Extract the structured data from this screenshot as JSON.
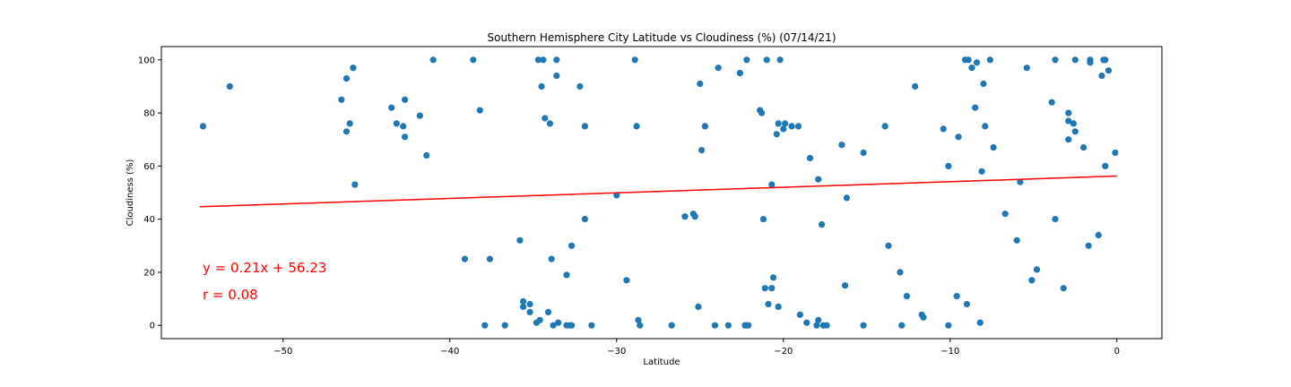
{
  "chart_data": {
    "type": "scatter",
    "title": "Southern Hemisphere City Latitude vs Cloudiness (%) (07/14/21)",
    "xlabel": "Latitude",
    "ylabel": "Cloudiness (%)",
    "xlim": [
      -57.3,
      2.7
    ],
    "ylim": [
      -5,
      105
    ],
    "xticks": [
      -50,
      -40,
      -30,
      -20,
      -10,
      0
    ],
    "xtick_labels": [
      "−50",
      "−40",
      "−30",
      "−20",
      "−10",
      "0"
    ],
    "yticks": [
      0,
      20,
      40,
      60,
      80,
      100
    ],
    "ytick_labels": [
      "0",
      "20",
      "40",
      "60",
      "80",
      "100"
    ],
    "grid": false,
    "point_color": "#1f77b4",
    "line_color": "#ff0000",
    "regression": {
      "slope": 0.21,
      "intercept": 56.23,
      "x_range": [
        -55,
        0
      ]
    },
    "annotations": [
      "y = 0.21x + 56.23",
      "r = 0.08"
    ],
    "points": [
      [
        -54.8,
        75
      ],
      [
        -53.2,
        90
      ],
      [
        -46.5,
        85
      ],
      [
        -46.2,
        93
      ],
      [
        -46.2,
        73
      ],
      [
        -46.0,
        76
      ],
      [
        -45.8,
        97
      ],
      [
        -45.7,
        53
      ],
      [
        -43.5,
        82
      ],
      [
        -43.2,
        76
      ],
      [
        -42.8,
        75
      ],
      [
        -42.7,
        85
      ],
      [
        -42.7,
        71
      ],
      [
        -41.8,
        79
      ],
      [
        -41.4,
        64
      ],
      [
        -41.0,
        100
      ],
      [
        -38.6,
        100
      ],
      [
        -38.2,
        81
      ],
      [
        -39.1,
        25
      ],
      [
        -37.6,
        25
      ],
      [
        -37.9,
        0
      ],
      [
        -36.7,
        0
      ],
      [
        -35.8,
        32
      ],
      [
        -35.6,
        7
      ],
      [
        -35.6,
        9
      ],
      [
        -35.2,
        8
      ],
      [
        -35.2,
        5
      ],
      [
        -34.8,
        1
      ],
      [
        -34.6,
        2
      ],
      [
        -34.7,
        100
      ],
      [
        -34.4,
        100
      ],
      [
        -34.5,
        90
      ],
      [
        -34.3,
        78
      ],
      [
        -34.1,
        5
      ],
      [
        -34.0,
        76
      ],
      [
        -33.9,
        25
      ],
      [
        -33.8,
        0
      ],
      [
        -33.6,
        100
      ],
      [
        -33.6,
        94
      ],
      [
        -33.5,
        1
      ],
      [
        -33.0,
        0
      ],
      [
        -33.0,
        19
      ],
      [
        -32.8,
        0
      ],
      [
        -32.7,
        0
      ],
      [
        -32.7,
        30
      ],
      [
        -32.2,
        90
      ],
      [
        -31.9,
        75
      ],
      [
        -31.9,
        40
      ],
      [
        -31.5,
        0
      ],
      [
        -30.0,
        49
      ],
      [
        -29.4,
        17
      ],
      [
        -28.9,
        100
      ],
      [
        -28.8,
        75
      ],
      [
        -28.7,
        2
      ],
      [
        -28.6,
        0
      ],
      [
        -26.7,
        0
      ],
      [
        -25.9,
        41
      ],
      [
        -25.4,
        42
      ],
      [
        -25.3,
        41
      ],
      [
        -25.1,
        7
      ],
      [
        -25.0,
        91
      ],
      [
        -24.9,
        66
      ],
      [
        -24.7,
        75
      ],
      [
        -23.9,
        97
      ],
      [
        -24.1,
        0
      ],
      [
        -23.3,
        0
      ],
      [
        -22.6,
        95
      ],
      [
        -22.3,
        0
      ],
      [
        -22.2,
        100
      ],
      [
        -22.2,
        0
      ],
      [
        -22.1,
        0
      ],
      [
        -21.4,
        81
      ],
      [
        -21.3,
        80
      ],
      [
        -21.2,
        40
      ],
      [
        -21.1,
        14
      ],
      [
        -21.0,
        100
      ],
      [
        -20.9,
        8
      ],
      [
        -20.7,
        14
      ],
      [
        -20.7,
        53
      ],
      [
        -20.6,
        18
      ],
      [
        -20.4,
        72
      ],
      [
        -20.3,
        76
      ],
      [
        -20.3,
        7
      ],
      [
        -20.2,
        100
      ],
      [
        -20.0,
        74
      ],
      [
        -19.9,
        76
      ],
      [
        -19.5,
        75
      ],
      [
        -19.1,
        75
      ],
      [
        -19.0,
        4
      ],
      [
        -18.6,
        1
      ],
      [
        -18.4,
        63
      ],
      [
        -18.0,
        0
      ],
      [
        -17.9,
        55
      ],
      [
        -17.9,
        2
      ],
      [
        -17.7,
        38
      ],
      [
        -17.6,
        0
      ],
      [
        -17.4,
        0
      ],
      [
        -16.5,
        68
      ],
      [
        -16.2,
        48
      ],
      [
        -16.3,
        15
      ],
      [
        -15.2,
        65
      ],
      [
        -15.2,
        0
      ],
      [
        -13.9,
        75
      ],
      [
        -13.7,
        30
      ],
      [
        -13.0,
        20
      ],
      [
        -12.9,
        0
      ],
      [
        -12.6,
        11
      ],
      [
        -12.1,
        90
      ],
      [
        -11.7,
        4
      ],
      [
        -11.6,
        3
      ],
      [
        -10.4,
        74
      ],
      [
        -10.1,
        60
      ],
      [
        -10.1,
        0
      ],
      [
        -9.6,
        11
      ],
      [
        -9.5,
        71
      ],
      [
        -9.1,
        100
      ],
      [
        -8.9,
        100
      ],
      [
        -9.0,
        8
      ],
      [
        -8.7,
        97
      ],
      [
        -8.5,
        82
      ],
      [
        -8.4,
        99
      ],
      [
        -8.2,
        1
      ],
      [
        -8.0,
        91
      ],
      [
        -7.9,
        75
      ],
      [
        -7.6,
        100
      ],
      [
        -7.4,
        67
      ],
      [
        -8.1,
        58
      ],
      [
        -6.7,
        42
      ],
      [
        -6.0,
        32
      ],
      [
        -5.8,
        54
      ],
      [
        -5.4,
        97
      ],
      [
        -5.1,
        17
      ],
      [
        -4.8,
        21
      ],
      [
        -3.9,
        84
      ],
      [
        -3.7,
        100
      ],
      [
        -3.7,
        40
      ],
      [
        -3.2,
        14
      ],
      [
        -2.9,
        80
      ],
      [
        -2.9,
        77
      ],
      [
        -2.9,
        70
      ],
      [
        -2.6,
        76
      ],
      [
        -2.5,
        100
      ],
      [
        -2.5,
        73
      ],
      [
        -2.0,
        67
      ],
      [
        -1.7,
        30
      ],
      [
        -1.6,
        100
      ],
      [
        -1.6,
        99
      ],
      [
        -1.1,
        34
      ],
      [
        -0.9,
        94
      ],
      [
        -0.8,
        100
      ],
      [
        -0.7,
        100
      ],
      [
        -0.7,
        60
      ],
      [
        -0.5,
        96
      ],
      [
        -0.1,
        65
      ]
    ]
  }
}
